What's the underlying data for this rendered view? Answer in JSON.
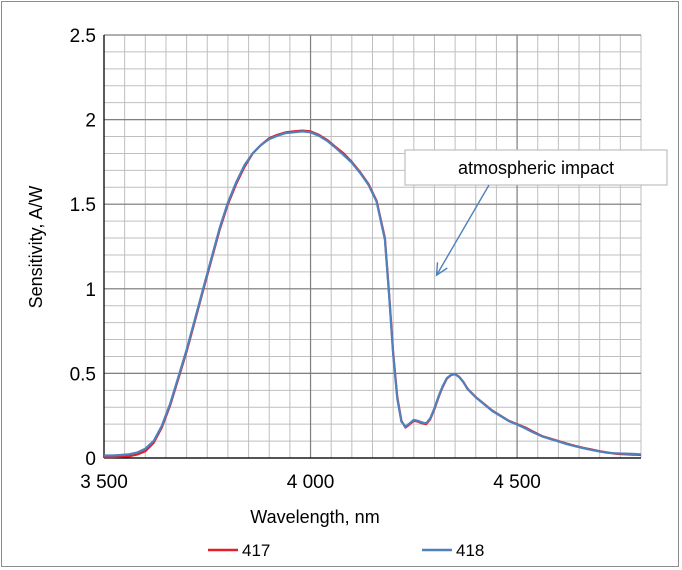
{
  "chart_data": {
    "type": "line",
    "title": "",
    "xlabel": "Wavelength, nm",
    "ylabel": "Sensitivity, A/W",
    "xlim": [
      3500,
      4800
    ],
    "ylim": [
      0,
      2.5
    ],
    "x_ticks": [
      3500,
      4000,
      4500
    ],
    "x_tick_labels": [
      "3 500",
      "4 000",
      "4 500"
    ],
    "x_minor_step": 50,
    "y_ticks": [
      0,
      0.5,
      1,
      1.5,
      2,
      2.5
    ],
    "y_tick_labels": [
      "0",
      "0.5",
      "1",
      "1.5",
      "2",
      "2.5"
    ],
    "y_minor_step": 0.1,
    "grid": true,
    "legend_position": "bottom",
    "annotation": {
      "text": "atmospheric impact",
      "arrow_target": [
        4305,
        1.08
      ]
    },
    "series": [
      {
        "name": "417",
        "color": "#e0202a",
        "points": [
          [
            3500,
            0.005
          ],
          [
            3520,
            0.005
          ],
          [
            3540,
            0.008
          ],
          [
            3560,
            0.01
          ],
          [
            3580,
            0.02
          ],
          [
            3600,
            0.04
          ],
          [
            3620,
            0.09
          ],
          [
            3640,
            0.18
          ],
          [
            3660,
            0.31
          ],
          [
            3680,
            0.47
          ],
          [
            3700,
            0.63
          ],
          [
            3720,
            0.81
          ],
          [
            3740,
            0.99
          ],
          [
            3760,
            1.17
          ],
          [
            3780,
            1.35
          ],
          [
            3800,
            1.5
          ],
          [
            3820,
            1.62
          ],
          [
            3840,
            1.72
          ],
          [
            3860,
            1.8
          ],
          [
            3880,
            1.85
          ],
          [
            3900,
            1.89
          ],
          [
            3920,
            1.91
          ],
          [
            3940,
            1.925
          ],
          [
            3960,
            1.93
          ],
          [
            3980,
            1.935
          ],
          [
            4000,
            1.93
          ],
          [
            4020,
            1.91
          ],
          [
            4040,
            1.88
          ],
          [
            4060,
            1.84
          ],
          [
            4080,
            1.8
          ],
          [
            4100,
            1.75
          ],
          [
            4120,
            1.69
          ],
          [
            4140,
            1.62
          ],
          [
            4160,
            1.52
          ],
          [
            4180,
            1.3
          ],
          [
            4190,
            0.98
          ],
          [
            4200,
            0.62
          ],
          [
            4210,
            0.36
          ],
          [
            4220,
            0.22
          ],
          [
            4230,
            0.18
          ],
          [
            4240,
            0.2
          ],
          [
            4250,
            0.22
          ],
          [
            4260,
            0.215
          ],
          [
            4270,
            0.205
          ],
          [
            4280,
            0.2
          ],
          [
            4290,
            0.23
          ],
          [
            4300,
            0.29
          ],
          [
            4310,
            0.36
          ],
          [
            4320,
            0.42
          ],
          [
            4330,
            0.47
          ],
          [
            4340,
            0.49
          ],
          [
            4350,
            0.495
          ],
          [
            4360,
            0.48
          ],
          [
            4370,
            0.45
          ],
          [
            4380,
            0.41
          ],
          [
            4400,
            0.36
          ],
          [
            4420,
            0.32
          ],
          [
            4440,
            0.28
          ],
          [
            4460,
            0.25
          ],
          [
            4480,
            0.22
          ],
          [
            4500,
            0.2
          ],
          [
            4520,
            0.18
          ],
          [
            4540,
            0.155
          ],
          [
            4560,
            0.13
          ],
          [
            4580,
            0.115
          ],
          [
            4600,
            0.1
          ],
          [
            4620,
            0.085
          ],
          [
            4640,
            0.072
          ],
          [
            4660,
            0.06
          ],
          [
            4680,
            0.05
          ],
          [
            4700,
            0.04
          ],
          [
            4720,
            0.032
          ],
          [
            4740,
            0.025
          ],
          [
            4760,
            0.022
          ],
          [
            4780,
            0.02
          ],
          [
            4800,
            0.018
          ]
        ]
      },
      {
        "name": "418",
        "color": "#4f81bd",
        "points": [
          [
            3500,
            0.015
          ],
          [
            3520,
            0.015
          ],
          [
            3540,
            0.018
          ],
          [
            3560,
            0.022
          ],
          [
            3580,
            0.032
          ],
          [
            3600,
            0.055
          ],
          [
            3620,
            0.1
          ],
          [
            3640,
            0.19
          ],
          [
            3660,
            0.32
          ],
          [
            3680,
            0.48
          ],
          [
            3700,
            0.64
          ],
          [
            3720,
            0.82
          ],
          [
            3740,
            1.0
          ],
          [
            3760,
            1.18
          ],
          [
            3780,
            1.36
          ],
          [
            3800,
            1.51
          ],
          [
            3820,
            1.63
          ],
          [
            3840,
            1.73
          ],
          [
            3860,
            1.8
          ],
          [
            3880,
            1.85
          ],
          [
            3900,
            1.885
          ],
          [
            3920,
            1.905
          ],
          [
            3940,
            1.92
          ],
          [
            3960,
            1.925
          ],
          [
            3980,
            1.93
          ],
          [
            4000,
            1.925
          ],
          [
            4020,
            1.905
          ],
          [
            4040,
            1.875
          ],
          [
            4060,
            1.835
          ],
          [
            4080,
            1.79
          ],
          [
            4100,
            1.745
          ],
          [
            4120,
            1.685
          ],
          [
            4140,
            1.615
          ],
          [
            4160,
            1.515
          ],
          [
            4180,
            1.29
          ],
          [
            4190,
            0.97
          ],
          [
            4200,
            0.61
          ],
          [
            4210,
            0.35
          ],
          [
            4220,
            0.215
          ],
          [
            4230,
            0.185
          ],
          [
            4240,
            0.205
          ],
          [
            4250,
            0.225
          ],
          [
            4260,
            0.22
          ],
          [
            4270,
            0.21
          ],
          [
            4280,
            0.205
          ],
          [
            4290,
            0.235
          ],
          [
            4300,
            0.295
          ],
          [
            4310,
            0.365
          ],
          [
            4320,
            0.425
          ],
          [
            4330,
            0.472
          ],
          [
            4340,
            0.492
          ],
          [
            4350,
            0.495
          ],
          [
            4360,
            0.478
          ],
          [
            4370,
            0.448
          ],
          [
            4380,
            0.408
          ],
          [
            4400,
            0.358
          ],
          [
            4420,
            0.318
          ],
          [
            4440,
            0.278
          ],
          [
            4460,
            0.248
          ],
          [
            4480,
            0.218
          ],
          [
            4500,
            0.198
          ],
          [
            4520,
            0.175
          ],
          [
            4540,
            0.15
          ],
          [
            4560,
            0.128
          ],
          [
            4580,
            0.112
          ],
          [
            4600,
            0.098
          ],
          [
            4620,
            0.082
          ],
          [
            4640,
            0.07
          ],
          [
            4660,
            0.058
          ],
          [
            4680,
            0.048
          ],
          [
            4700,
            0.038
          ],
          [
            4720,
            0.03
          ],
          [
            4740,
            0.028
          ],
          [
            4760,
            0.026
          ],
          [
            4780,
            0.024
          ],
          [
            4800,
            0.022
          ]
        ]
      }
    ]
  }
}
